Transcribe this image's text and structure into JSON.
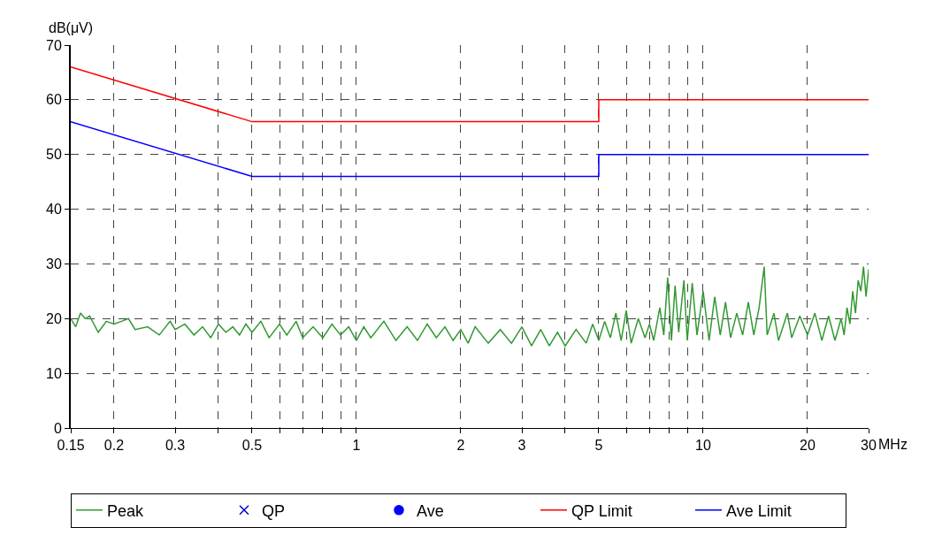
{
  "chart_data": {
    "type": "line",
    "xlabel": "MHz",
    "ylabel": "dB(μV)",
    "log": "x",
    "xlim": [
      0.15,
      30
    ],
    "ylim": [
      0,
      70
    ],
    "xticks": [
      0.15,
      0.2,
      0.3,
      {
        "value": 0.4,
        "label": null
      },
      0.5,
      {
        "value": 0.6,
        "label": null
      },
      {
        "value": 0.7,
        "label": null
      },
      {
        "value": 0.8,
        "label": null
      },
      {
        "value": 0.9,
        "label": null
      },
      1,
      2,
      3,
      {
        "value": 4,
        "label": null
      },
      5,
      {
        "value": 6,
        "label": null
      },
      {
        "value": 7,
        "label": null
      },
      {
        "value": 8,
        "label": null
      },
      {
        "value": 9,
        "label": null
      },
      10,
      20,
      30
    ],
    "yticks": [
      0,
      10,
      20,
      30,
      40,
      50,
      60,
      70
    ],
    "grid": true,
    "legend": "bottom",
    "series": [
      {
        "name": "Peak",
        "color": "#339933",
        "x": [
          0.15,
          0.155,
          0.16,
          0.165,
          0.17,
          0.18,
          0.19,
          0.2,
          0.21,
          0.22,
          0.23,
          0.25,
          0.27,
          0.29,
          0.3,
          0.32,
          0.34,
          0.36,
          0.38,
          0.4,
          0.42,
          0.44,
          0.46,
          0.48,
          0.5,
          0.53,
          0.56,
          0.6,
          0.63,
          0.67,
          0.7,
          0.75,
          0.8,
          0.85,
          0.9,
          0.95,
          1.0,
          1.05,
          1.1,
          1.2,
          1.3,
          1.4,
          1.5,
          1.6,
          1.7,
          1.8,
          1.9,
          2.0,
          2.1,
          2.2,
          2.4,
          2.6,
          2.8,
          3.0,
          3.2,
          3.4,
          3.6,
          3.8,
          4.0,
          4.3,
          4.6,
          4.8,
          5.0,
          5.2,
          5.4,
          5.6,
          5.8,
          6.0,
          6.2,
          6.5,
          6.8,
          7.0,
          7.2,
          7.5,
          7.7,
          7.9,
          8.1,
          8.3,
          8.5,
          8.8,
          9.0,
          9.3,
          9.6,
          10,
          10.4,
          10.8,
          11.2,
          11.6,
          12,
          12.5,
          13,
          13.5,
          14,
          14.5,
          15,
          15.3,
          16,
          16.5,
          17.5,
          18,
          19,
          20,
          21,
          22,
          23,
          24,
          25,
          25.5,
          26,
          26.5,
          27,
          27.5,
          28,
          28.5,
          29,
          29.5,
          30
        ],
        "values": [
          20,
          18.5,
          21,
          20,
          20.5,
          17.5,
          19.5,
          19,
          19.5,
          20,
          18,
          18.5,
          17,
          19.5,
          18,
          19,
          17,
          18.5,
          16.5,
          19,
          17.5,
          18.5,
          17,
          19,
          17.5,
          19.5,
          16.5,
          19,
          17,
          19.5,
          16.5,
          18.5,
          16.5,
          19,
          17,
          18.5,
          16,
          18.5,
          16.5,
          19.5,
          16,
          18.5,
          16,
          19,
          16.5,
          18.5,
          16,
          18,
          15.5,
          18.5,
          15.5,
          18,
          15.5,
          18.5,
          15,
          18,
          15,
          17.5,
          15,
          18,
          15.5,
          19,
          16,
          19.5,
          16.5,
          21,
          16,
          21.5,
          15.5,
          20,
          16.5,
          19,
          16,
          22,
          17,
          27.5,
          16,
          26,
          17.5,
          27,
          16,
          26.5,
          17,
          25,
          16,
          24,
          17,
          23,
          16.5,
          21,
          17,
          23,
          17,
          22,
          29.5,
          17,
          21,
          16,
          21,
          16.5,
          20.5,
          17,
          21,
          16,
          20.5,
          16,
          20,
          17,
          22,
          19,
          25,
          21,
          27,
          25,
          29.5,
          24,
          29
        ]
      },
      {
        "name": "QP",
        "type": "scatter",
        "marker": "cross",
        "color": "#0000cc"
      },
      {
        "name": "Ave",
        "type": "scatter",
        "marker": "circle",
        "color": "#0000ff"
      },
      {
        "name": "QP Limit",
        "color": "#ff0000",
        "x": [
          0.15,
          0.5,
          5,
          5,
          30
        ],
        "values": [
          66,
          56,
          56,
          60,
          60
        ]
      },
      {
        "name": "Ave Limit",
        "color": "#0000ff",
        "x": [
          0.15,
          0.5,
          5,
          5,
          30
        ],
        "values": [
          56,
          46,
          46,
          50,
          50
        ]
      }
    ]
  }
}
